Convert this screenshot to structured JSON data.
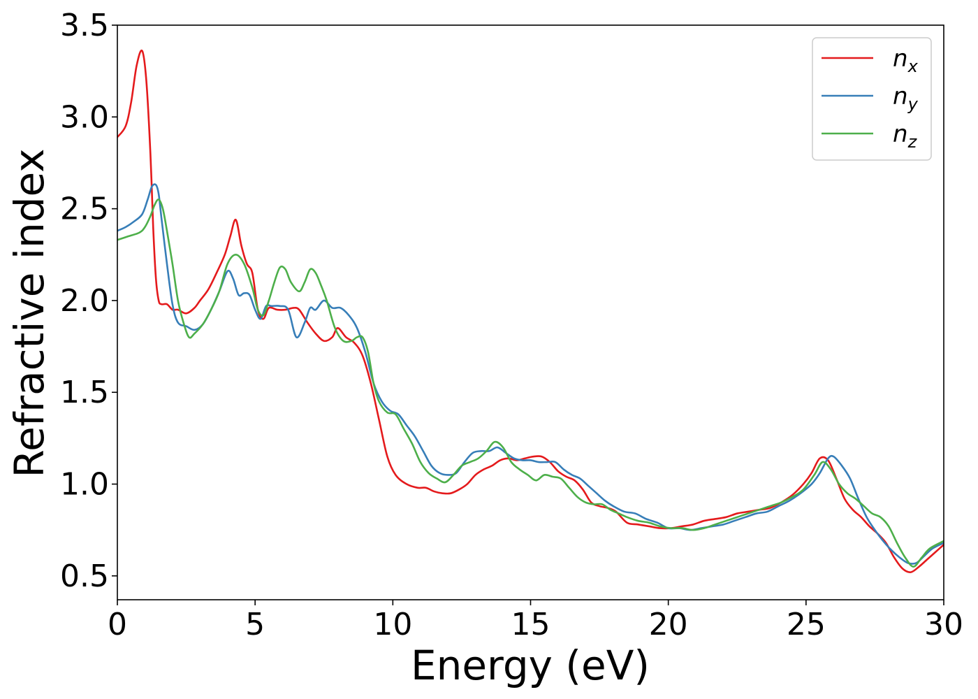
{
  "chart_data": {
    "type": "line",
    "title": "",
    "xlabel": "Energy (eV)",
    "ylabel": "Refractive index",
    "xlim": [
      0,
      30
    ],
    "ylim": [
      0.37,
      3.5
    ],
    "xticks": [
      0,
      5,
      10,
      15,
      20,
      25,
      30
    ],
    "xtick_labels": [
      "0",
      "5",
      "10",
      "15",
      "20",
      "25",
      "30"
    ],
    "yticks": [
      0.5,
      1.0,
      1.5,
      2.0,
      2.5,
      3.0,
      3.5
    ],
    "ytick_labels": [
      "0.5",
      "1.0",
      "1.5",
      "2.0",
      "2.5",
      "3.0",
      "3.5"
    ],
    "grid": false,
    "legend_position": "top-right",
    "series": [
      {
        "name": "n",
        "subscript": "x",
        "color": "#e41a1c",
        "x": [
          0,
          0.3,
          0.5,
          0.7,
          0.9,
          1.05,
          1.2,
          1.3,
          1.4,
          1.5,
          1.6,
          1.8,
          2.0,
          2.2,
          2.5,
          2.8,
          3.0,
          3.3,
          3.6,
          3.9,
          4.1,
          4.3,
          4.5,
          4.7,
          4.9,
          5.1,
          5.3,
          5.5,
          5.8,
          6.1,
          6.4,
          6.6,
          6.9,
          7.2,
          7.5,
          7.8,
          8.0,
          8.3,
          8.6,
          8.9,
          9.2,
          9.5,
          9.8,
          10.1,
          10.5,
          10.9,
          11.2,
          11.5,
          11.8,
          12.1,
          12.4,
          12.7,
          13.0,
          13.3,
          13.6,
          13.9,
          14.2,
          14.5,
          14.8,
          15.1,
          15.4,
          15.7,
          16.0,
          16.3,
          16.6,
          16.9,
          17.2,
          17.5,
          17.8,
          18.1,
          18.5,
          18.9,
          19.3,
          19.7,
          20.1,
          20.5,
          20.9,
          21.3,
          21.7,
          22.1,
          22.5,
          22.9,
          23.3,
          23.7,
          24.1,
          24.5,
          24.9,
          25.2,
          25.5,
          25.8,
          26.1,
          26.4,
          26.7,
          27.0,
          27.3,
          27.6,
          27.9,
          28.2,
          28.5,
          28.8,
          29.1,
          29.4,
          29.7,
          30.0
        ],
        "y": [
          2.89,
          2.95,
          3.08,
          3.28,
          3.36,
          3.2,
          2.8,
          2.4,
          2.12,
          2.0,
          1.98,
          1.98,
          1.95,
          1.95,
          1.93,
          1.96,
          2.0,
          2.06,
          2.15,
          2.25,
          2.35,
          2.44,
          2.3,
          2.2,
          2.15,
          1.95,
          1.9,
          1.96,
          1.95,
          1.95,
          1.96,
          1.95,
          1.88,
          1.82,
          1.78,
          1.8,
          1.85,
          1.8,
          1.77,
          1.7,
          1.55,
          1.35,
          1.15,
          1.05,
          1.0,
          0.98,
          0.98,
          0.96,
          0.95,
          0.95,
          0.97,
          1.0,
          1.05,
          1.08,
          1.1,
          1.13,
          1.14,
          1.13,
          1.14,
          1.15,
          1.15,
          1.12,
          1.07,
          1.04,
          1.02,
          0.97,
          0.9,
          0.88,
          0.87,
          0.85,
          0.79,
          0.78,
          0.77,
          0.76,
          0.76,
          0.77,
          0.78,
          0.8,
          0.81,
          0.82,
          0.84,
          0.85,
          0.86,
          0.87,
          0.9,
          0.94,
          1.0,
          1.06,
          1.14,
          1.13,
          1.03,
          0.92,
          0.86,
          0.82,
          0.77,
          0.73,
          0.68,
          0.6,
          0.54,
          0.52,
          0.55,
          0.59,
          0.63,
          0.67
        ]
      },
      {
        "name": "n",
        "subscript": "y",
        "color": "#377eb8",
        "x": [
          0,
          0.3,
          0.6,
          0.9,
          1.1,
          1.25,
          1.4,
          1.5,
          1.6,
          1.8,
          2.0,
          2.2,
          2.5,
          2.8,
          3.1,
          3.4,
          3.7,
          4.0,
          4.2,
          4.4,
          4.6,
          4.8,
          5.0,
          5.2,
          5.4,
          5.6,
          5.9,
          6.2,
          6.5,
          6.8,
          7.0,
          7.2,
          7.5,
          7.8,
          8.1,
          8.4,
          8.7,
          9.0,
          9.3,
          9.6,
          9.9,
          10.2,
          10.5,
          10.8,
          11.1,
          11.4,
          11.7,
          12.0,
          12.3,
          12.6,
          12.9,
          13.2,
          13.5,
          13.8,
          14.1,
          14.4,
          14.7,
          15.0,
          15.3,
          15.6,
          15.9,
          16.2,
          16.5,
          16.8,
          17.1,
          17.4,
          17.7,
          18.0,
          18.4,
          18.8,
          19.2,
          19.6,
          20.0,
          20.4,
          20.8,
          21.2,
          21.6,
          22.0,
          22.4,
          22.8,
          23.2,
          23.6,
          24.0,
          24.4,
          24.8,
          25.2,
          25.5,
          25.8,
          26.0,
          26.3,
          26.6,
          26.9,
          27.2,
          27.5,
          27.8,
          28.1,
          28.4,
          28.7,
          29.0,
          29.3,
          29.6,
          30.0
        ],
        "y": [
          2.38,
          2.4,
          2.43,
          2.47,
          2.55,
          2.62,
          2.63,
          2.58,
          2.45,
          2.2,
          1.98,
          1.88,
          1.86,
          1.84,
          1.87,
          1.95,
          2.05,
          2.16,
          2.12,
          2.03,
          2.04,
          2.03,
          1.95,
          1.9,
          1.97,
          1.97,
          1.97,
          1.95,
          1.8,
          1.88,
          1.96,
          1.95,
          2.0,
          1.96,
          1.96,
          1.92,
          1.85,
          1.72,
          1.55,
          1.45,
          1.4,
          1.38,
          1.32,
          1.26,
          1.18,
          1.1,
          1.06,
          1.05,
          1.06,
          1.12,
          1.17,
          1.18,
          1.18,
          1.2,
          1.17,
          1.14,
          1.13,
          1.13,
          1.12,
          1.12,
          1.12,
          1.08,
          1.05,
          1.03,
          0.99,
          0.95,
          0.91,
          0.88,
          0.85,
          0.84,
          0.81,
          0.79,
          0.76,
          0.76,
          0.75,
          0.76,
          0.77,
          0.78,
          0.8,
          0.82,
          0.84,
          0.85,
          0.88,
          0.91,
          0.95,
          1.0,
          1.06,
          1.14,
          1.15,
          1.1,
          1.03,
          0.92,
          0.82,
          0.75,
          0.69,
          0.64,
          0.6,
          0.57,
          0.57,
          0.61,
          0.65,
          0.68
        ]
      },
      {
        "name": "n",
        "subscript": "z",
        "color": "#4daf4a",
        "x": [
          0,
          0.4,
          0.8,
          1.0,
          1.2,
          1.35,
          1.5,
          1.65,
          1.8,
          2.0,
          2.2,
          2.4,
          2.6,
          2.8,
          3.1,
          3.4,
          3.7,
          4.0,
          4.3,
          4.6,
          4.9,
          5.1,
          5.3,
          5.5,
          5.7,
          5.9,
          6.1,
          6.3,
          6.6,
          6.8,
          7.0,
          7.2,
          7.4,
          7.6,
          7.9,
          8.2,
          8.5,
          8.7,
          8.9,
          9.1,
          9.3,
          9.5,
          9.8,
          10.1,
          10.4,
          10.7,
          11.0,
          11.3,
          11.6,
          11.9,
          12.2,
          12.5,
          12.8,
          13.1,
          13.4,
          13.7,
          14.0,
          14.3,
          14.6,
          14.9,
          15.2,
          15.5,
          15.8,
          16.1,
          16.4,
          16.7,
          17.0,
          17.3,
          17.6,
          17.9,
          18.2,
          18.5,
          18.9,
          19.3,
          19.7,
          20.1,
          20.5,
          20.9,
          21.3,
          21.7,
          22.1,
          22.5,
          22.9,
          23.3,
          23.7,
          24.1,
          24.5,
          24.9,
          25.3,
          25.6,
          25.9,
          26.2,
          26.5,
          26.8,
          27.1,
          27.4,
          27.7,
          28.0,
          28.3,
          28.6,
          28.9,
          29.2,
          29.5,
          30.0
        ],
        "y": [
          2.33,
          2.35,
          2.37,
          2.4,
          2.46,
          2.52,
          2.55,
          2.5,
          2.38,
          2.2,
          2.0,
          1.88,
          1.8,
          1.82,
          1.87,
          1.95,
          2.05,
          2.2,
          2.25,
          2.2,
          2.07,
          1.95,
          1.92,
          2.0,
          2.1,
          2.18,
          2.17,
          2.1,
          2.05,
          2.1,
          2.17,
          2.15,
          2.08,
          2.0,
          1.85,
          1.78,
          1.78,
          1.8,
          1.8,
          1.72,
          1.55,
          1.45,
          1.39,
          1.38,
          1.3,
          1.22,
          1.12,
          1.06,
          1.03,
          1.01,
          1.05,
          1.1,
          1.12,
          1.14,
          1.18,
          1.23,
          1.2,
          1.12,
          1.08,
          1.05,
          1.02,
          1.05,
          1.04,
          1.03,
          0.98,
          0.93,
          0.9,
          0.89,
          0.89,
          0.86,
          0.84,
          0.82,
          0.8,
          0.79,
          0.77,
          0.76,
          0.76,
          0.75,
          0.76,
          0.78,
          0.8,
          0.82,
          0.84,
          0.86,
          0.88,
          0.9,
          0.93,
          0.97,
          1.05,
          1.12,
          1.08,
          1.0,
          0.95,
          0.92,
          0.88,
          0.84,
          0.82,
          0.77,
          0.68,
          0.6,
          0.55,
          0.6,
          0.65,
          0.69
        ]
      }
    ]
  }
}
